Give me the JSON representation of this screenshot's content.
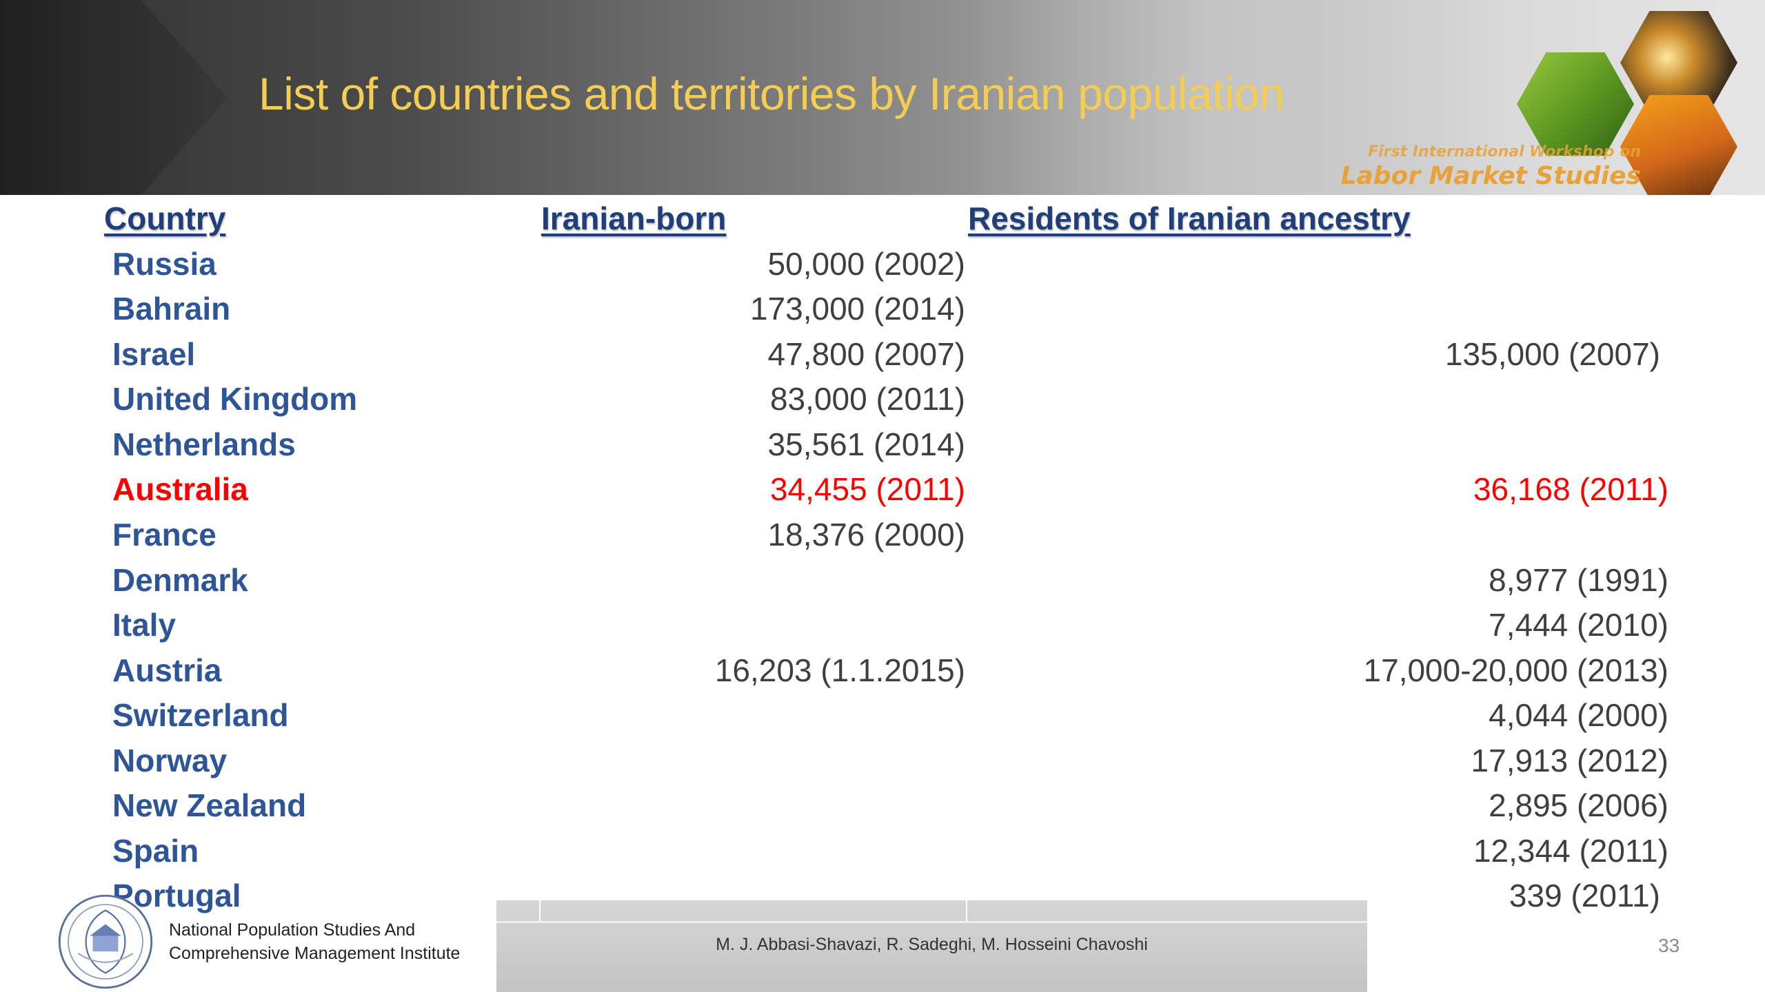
{
  "header": {
    "title": "List of countries and territories by Iranian population",
    "workshop_line1": "First International Workshop on",
    "workshop_line2": "Labor Market Studies"
  },
  "table": {
    "headers": {
      "country": "Country",
      "iranian_born": "Iranian-born",
      "ancestry": "Residents of Iranian ancestry"
    },
    "rows": [
      {
        "country": "Russia",
        "iranian_born": "50,000 (2002)",
        "ancestry": ""
      },
      {
        "country": "Bahrain",
        "iranian_born": "173,000 (2014)",
        "ancestry": ""
      },
      {
        "country": "Israel",
        "iranian_born": "47,800 (2007)",
        "ancestry": "135,000 (2007)"
      },
      {
        "country": "United Kingdom",
        "iranian_born": "83,000 (2011)",
        "ancestry": ""
      },
      {
        "country": "Netherlands",
        "iranian_born": "35,561 (2014)",
        "ancestry": ""
      },
      {
        "country": "Australia",
        "iranian_born": "34,455 (2011)",
        "ancestry": "36,168 (2011)",
        "highlight": true
      },
      {
        "country": "France",
        "iranian_born": "18,376 (2000)",
        "ancestry": ""
      },
      {
        "country": "Denmark",
        "iranian_born": "",
        "ancestry": "8,977 (1991)"
      },
      {
        "country": "Italy",
        "iranian_born": "",
        "ancestry": "7,444 (2010)"
      },
      {
        "country": "Austria",
        "iranian_born": "16,203 (1.1.2015)",
        "ancestry": "17,000-20,000 (2013)"
      },
      {
        "country": "Switzerland",
        "iranian_born": "",
        "ancestry": "4,044 (2000)"
      },
      {
        "country": "Norway",
        "iranian_born": "",
        "ancestry": "17,913 (2012)"
      },
      {
        "country": "New Zealand",
        "iranian_born": "",
        "ancestry": "2,895 (2006)"
      },
      {
        "country": "Spain",
        "iranian_born": "",
        "ancestry": "12,344 (2011)"
      },
      {
        "country": "Portugal",
        "iranian_born": "",
        "ancestry": "339 (2011)"
      }
    ]
  },
  "footer": {
    "institute_line1": "National Population Studies And",
    "institute_line2": "Comprehensive Management Institute",
    "authors": "M. J. Abbasi-Shavazi, R. Sadeghi, M. Hosseini Chavoshi",
    "page_number": "33"
  },
  "colors": {
    "title": "#f5cd52",
    "country": "#2e5597",
    "header": "#1f3e7a",
    "value": "#3f3f3f",
    "highlight": "#ff0000"
  }
}
